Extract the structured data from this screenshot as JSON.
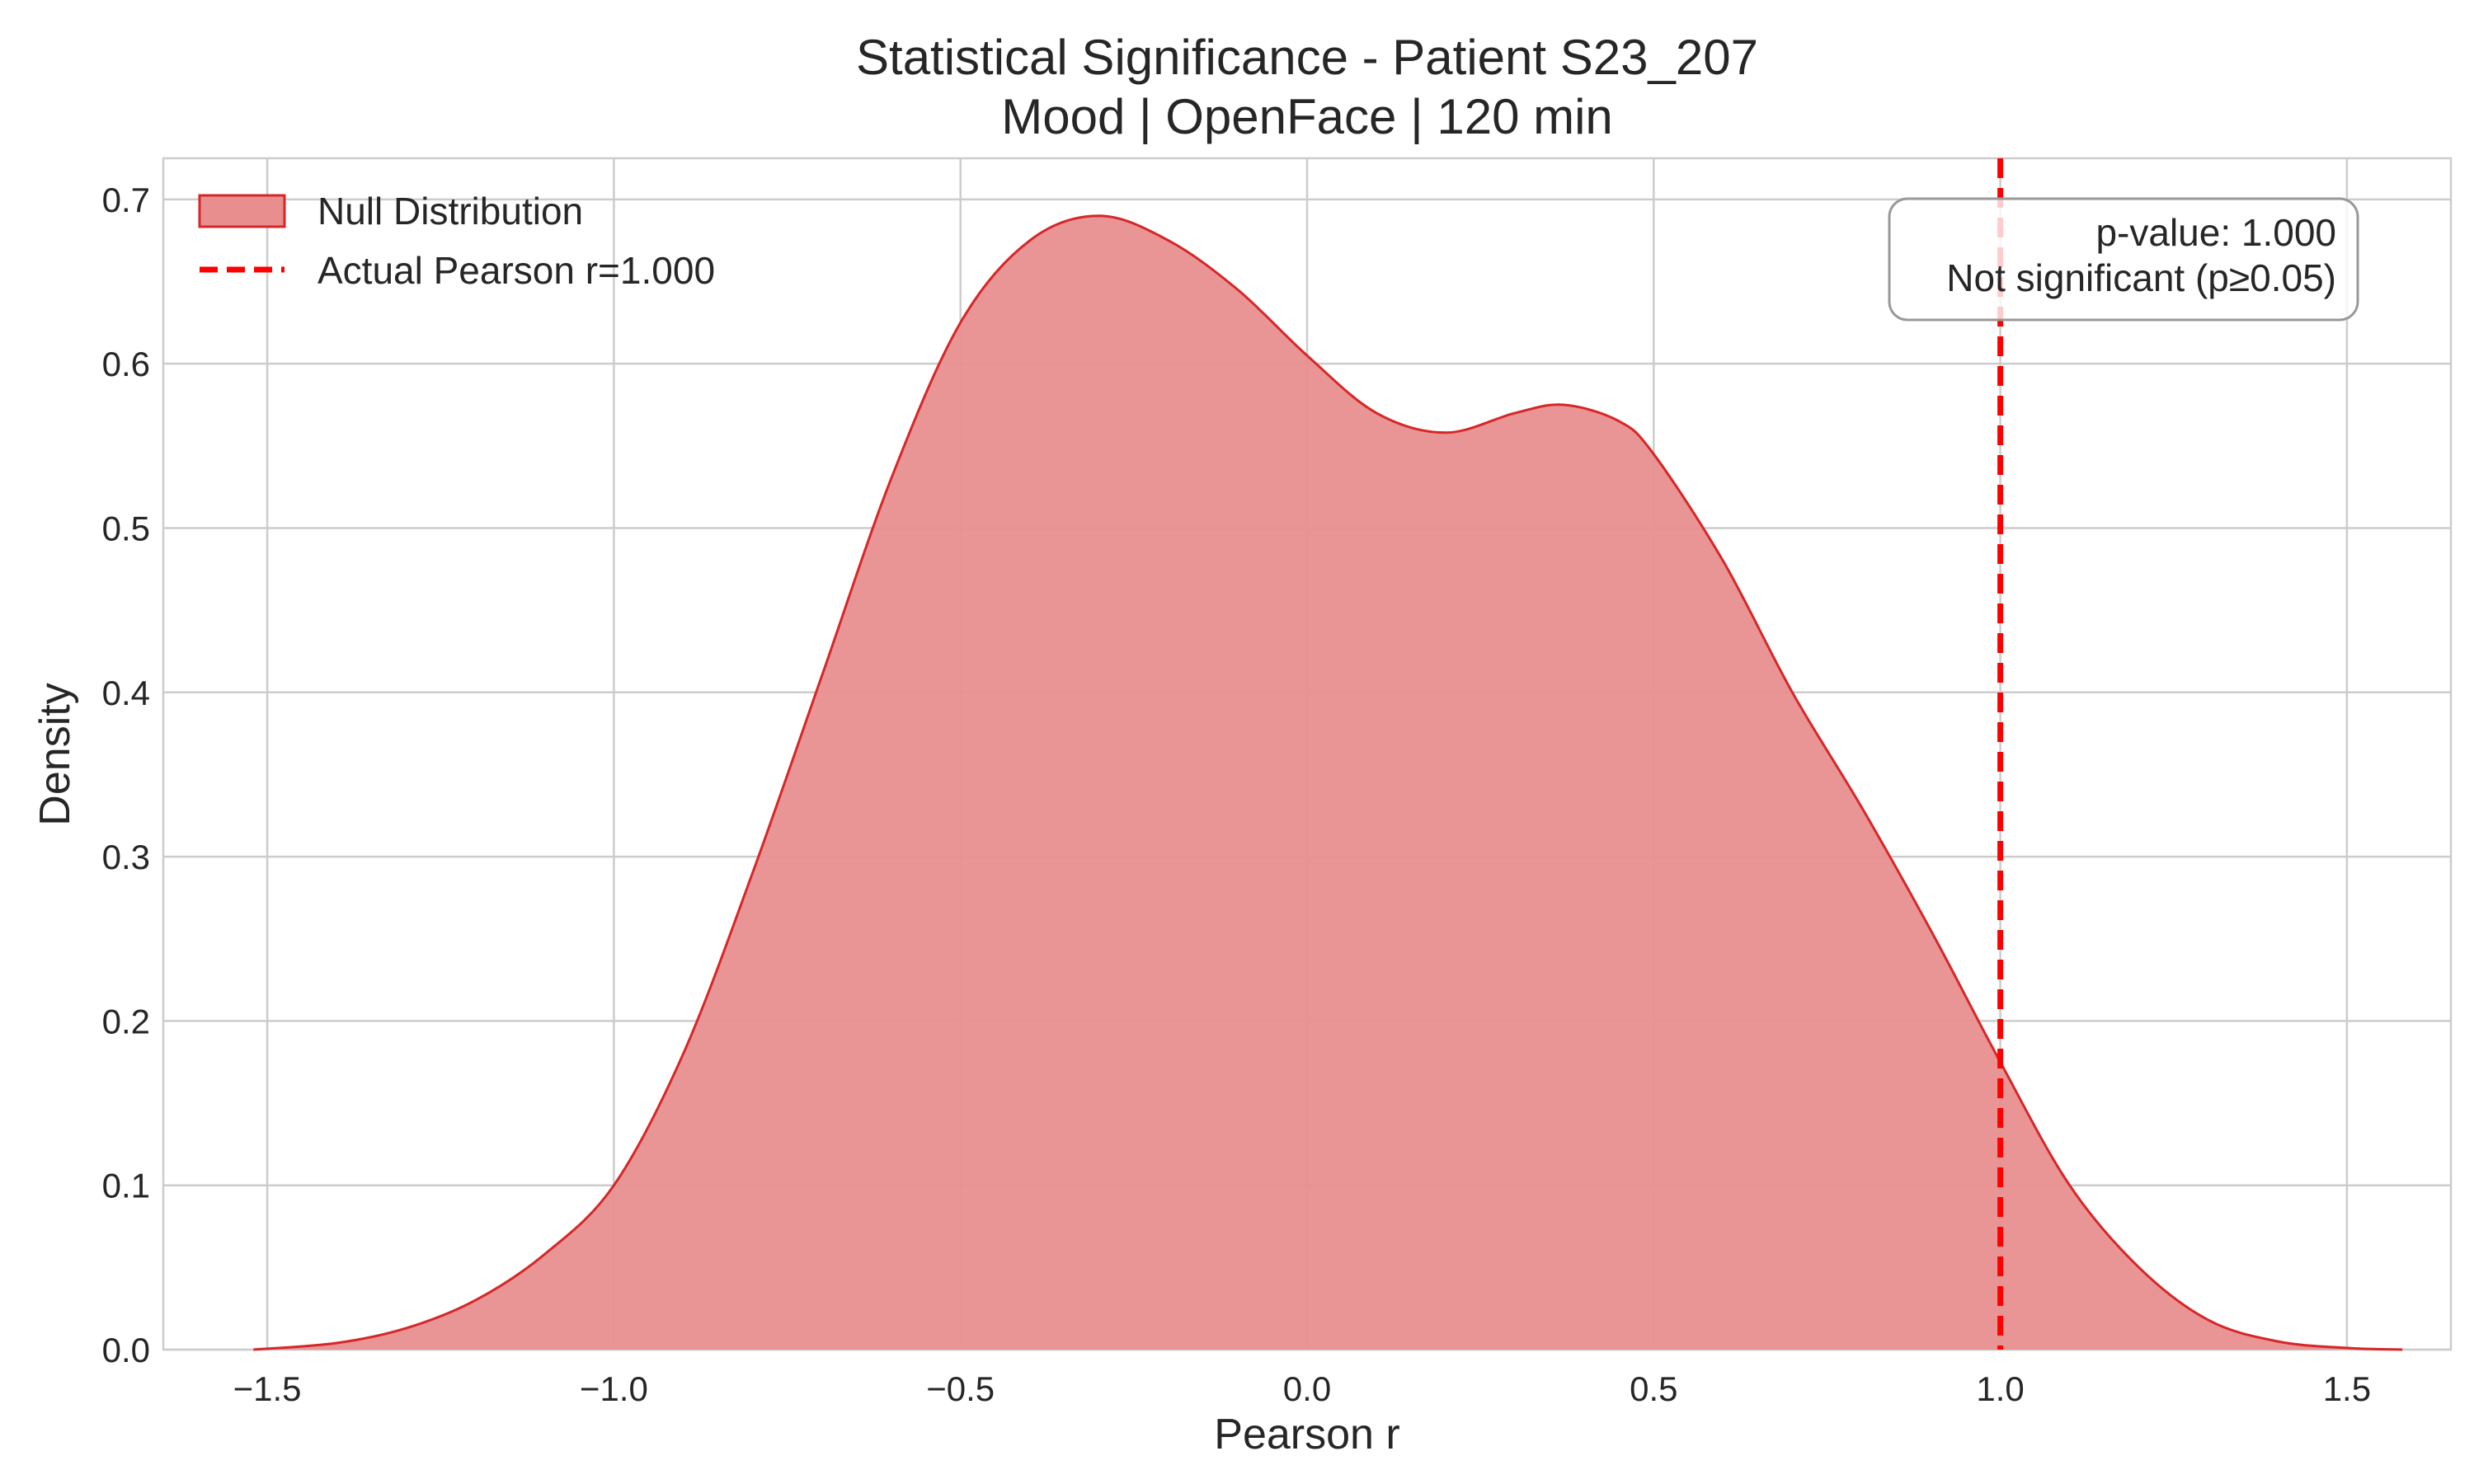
{
  "chart_data": {
    "type": "area",
    "title_line1": "Statistical Significance - Patient S23_207",
    "title_line2": "Mood | OpenFace | 120 min",
    "xlabel": "Pearson r",
    "ylabel": "Density",
    "xlim": [
      -1.65,
      1.65
    ],
    "ylim": [
      0,
      0.725
    ],
    "grid": true,
    "x_ticks": [
      -1.5,
      -1.0,
      -0.5,
      0.0,
      0.5,
      1.0,
      1.5
    ],
    "x_tick_labels": [
      "−1.5",
      "−1.0",
      "−0.5",
      "0.0",
      "0.5",
      "1.0",
      "1.5"
    ],
    "y_ticks": [
      0.0,
      0.1,
      0.2,
      0.3,
      0.4,
      0.5,
      0.6,
      0.7
    ],
    "y_tick_labels": [
      "0.0",
      "0.1",
      "0.2",
      "0.3",
      "0.4",
      "0.5",
      "0.6",
      "0.7"
    ],
    "series": [
      {
        "name": "Null Distribution",
        "color": "#d62728",
        "fill": "#e88e8f",
        "x": [
          -1.52,
          -1.4,
          -1.3,
          -1.2,
          -1.1,
          -1.0,
          -0.9,
          -0.8,
          -0.7,
          -0.6,
          -0.5,
          -0.4,
          -0.3,
          -0.2,
          -0.1,
          0.0,
          0.1,
          0.2,
          0.3,
          0.37,
          0.45,
          0.5,
          0.6,
          0.7,
          0.8,
          0.9,
          1.0,
          1.1,
          1.2,
          1.3,
          1.4,
          1.5,
          1.58
        ],
        "y": [
          0.0,
          0.004,
          0.013,
          0.03,
          0.058,
          0.1,
          0.18,
          0.29,
          0.41,
          0.53,
          0.625,
          0.675,
          0.69,
          0.675,
          0.645,
          0.605,
          0.57,
          0.558,
          0.57,
          0.575,
          0.565,
          0.545,
          0.48,
          0.4,
          0.33,
          0.255,
          0.175,
          0.1,
          0.05,
          0.018,
          0.005,
          0.001,
          0.0
        ]
      }
    ],
    "reference_line": {
      "name": "Actual Pearson r=1.000",
      "x": 1.0,
      "color": "#ff0000",
      "style": "dashed"
    },
    "annotation": {
      "line1": "p-value: 1.000",
      "line2": "Not significant (p≥0.05)",
      "placement": "top-right"
    },
    "legend": {
      "placement": "top-left",
      "entries": [
        "Null Distribution",
        "Actual Pearson r=1.000"
      ]
    }
  }
}
